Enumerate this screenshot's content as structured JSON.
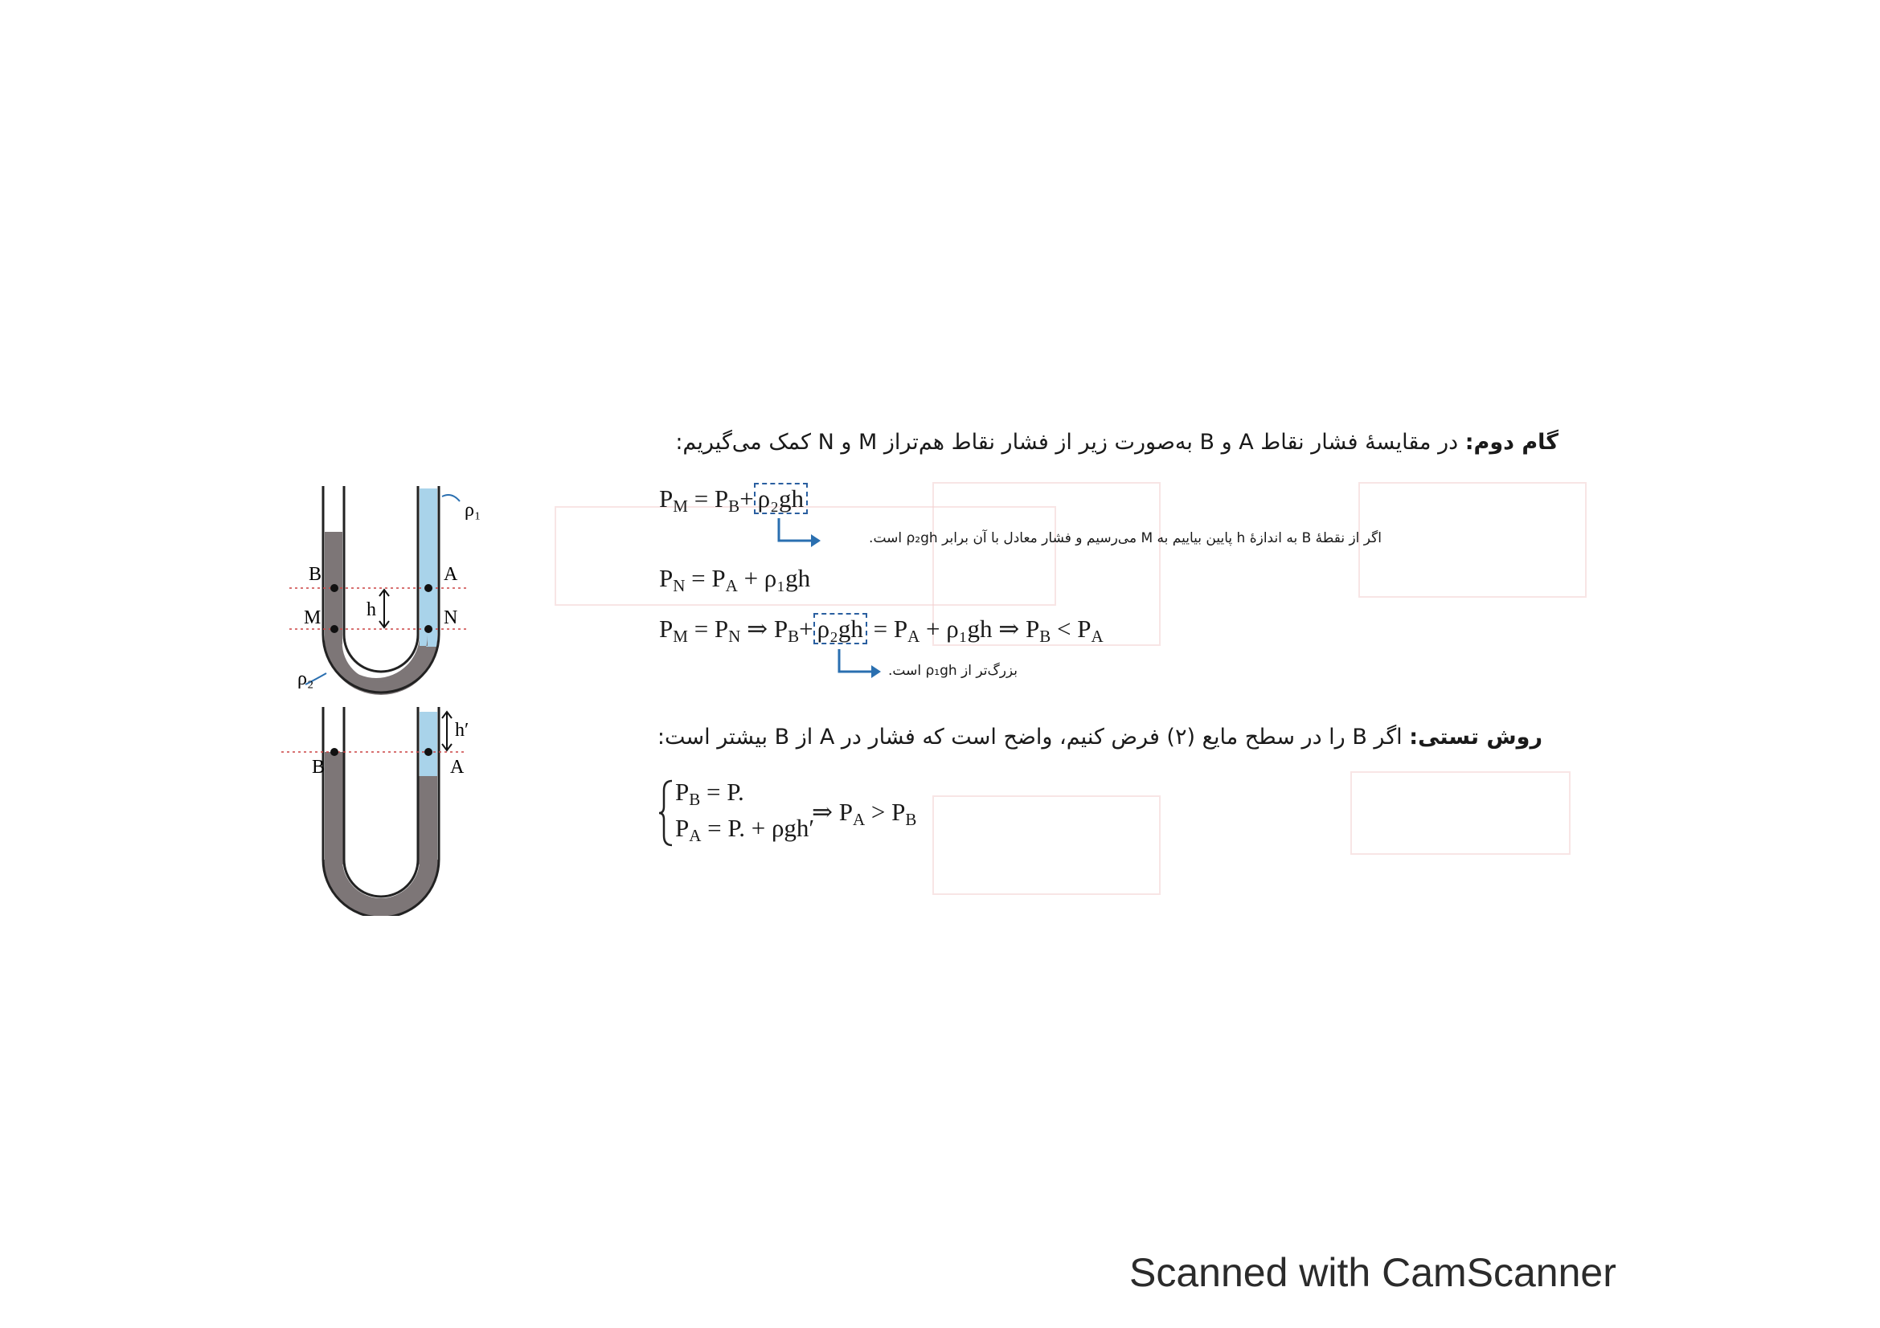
{
  "step2": {
    "title": "گام دوم:",
    "text_line1": " در مقایسهٔ فشار نقاط A و B به‌صورت زیر از فشار نقاط هم‌تراز M و N کمک می‌گیریم:"
  },
  "eq1": {
    "lhs": "P",
    "lhs_sub": "M",
    "rhs_p": "P",
    "rhs_sub": "B",
    "plus": "+",
    "boxed": "ρ₂gh"
  },
  "note1": "اگر از نقطهٔ B به اندازهٔ h پایین بیاییم به M می‌رسیم و فشار معادل با آن برابر ρ₂gh است.",
  "eq2": "= P_A + ρ₁gh",
  "eq2_parts": {
    "p": "P",
    "sub": "N",
    "eqsign": " = ",
    "pa": "P",
    "pa_sub": "A",
    "rest": " + ρ₁gh"
  },
  "eq3": {
    "a": "P",
    "a_sub": "M",
    "b": " = P",
    "b_sub": "N",
    "c": " ⇒ P",
    "c_sub": "B",
    "plus": "+",
    "boxed": "ρ₂gh",
    "d": " = P",
    "d_sub": "A",
    "e": " + ρ₁gh ⇒ P",
    "e_sub": "B",
    "f": " < P",
    "f_sub": "A"
  },
  "note2": "بزرگ‌تر از ρ₁gh است.",
  "test": {
    "title": "روش تستی:",
    "text": " اگر B را در سطح مایع (۲) فرض کنیم، واضح است که فشار در A از B بیشتر است:"
  },
  "system": {
    "l1_p": "P",
    "l1_sub": "B",
    "l1_rest": " = P.",
    "l2_p": "P",
    "l2_sub": "A",
    "l2_rest": " = P. + ρgh′",
    "impl": "⇒ P",
    "impl_sub": "A",
    "impl_mid": " > P",
    "impl_sub2": "B"
  },
  "figure1": {
    "rho1": "ρ₁",
    "rho2": "ρ₂",
    "B": "B",
    "A": "A",
    "M": "M",
    "N": "N",
    "h": "h"
  },
  "figure2": {
    "B": "B",
    "A": "A",
    "h": "h′"
  },
  "footer": "Scanned with CamScanner",
  "colors": {
    "liquid_dark": "#7d7677",
    "liquid_light": "#a9d3ea",
    "accent": "#2a6fb0"
  }
}
